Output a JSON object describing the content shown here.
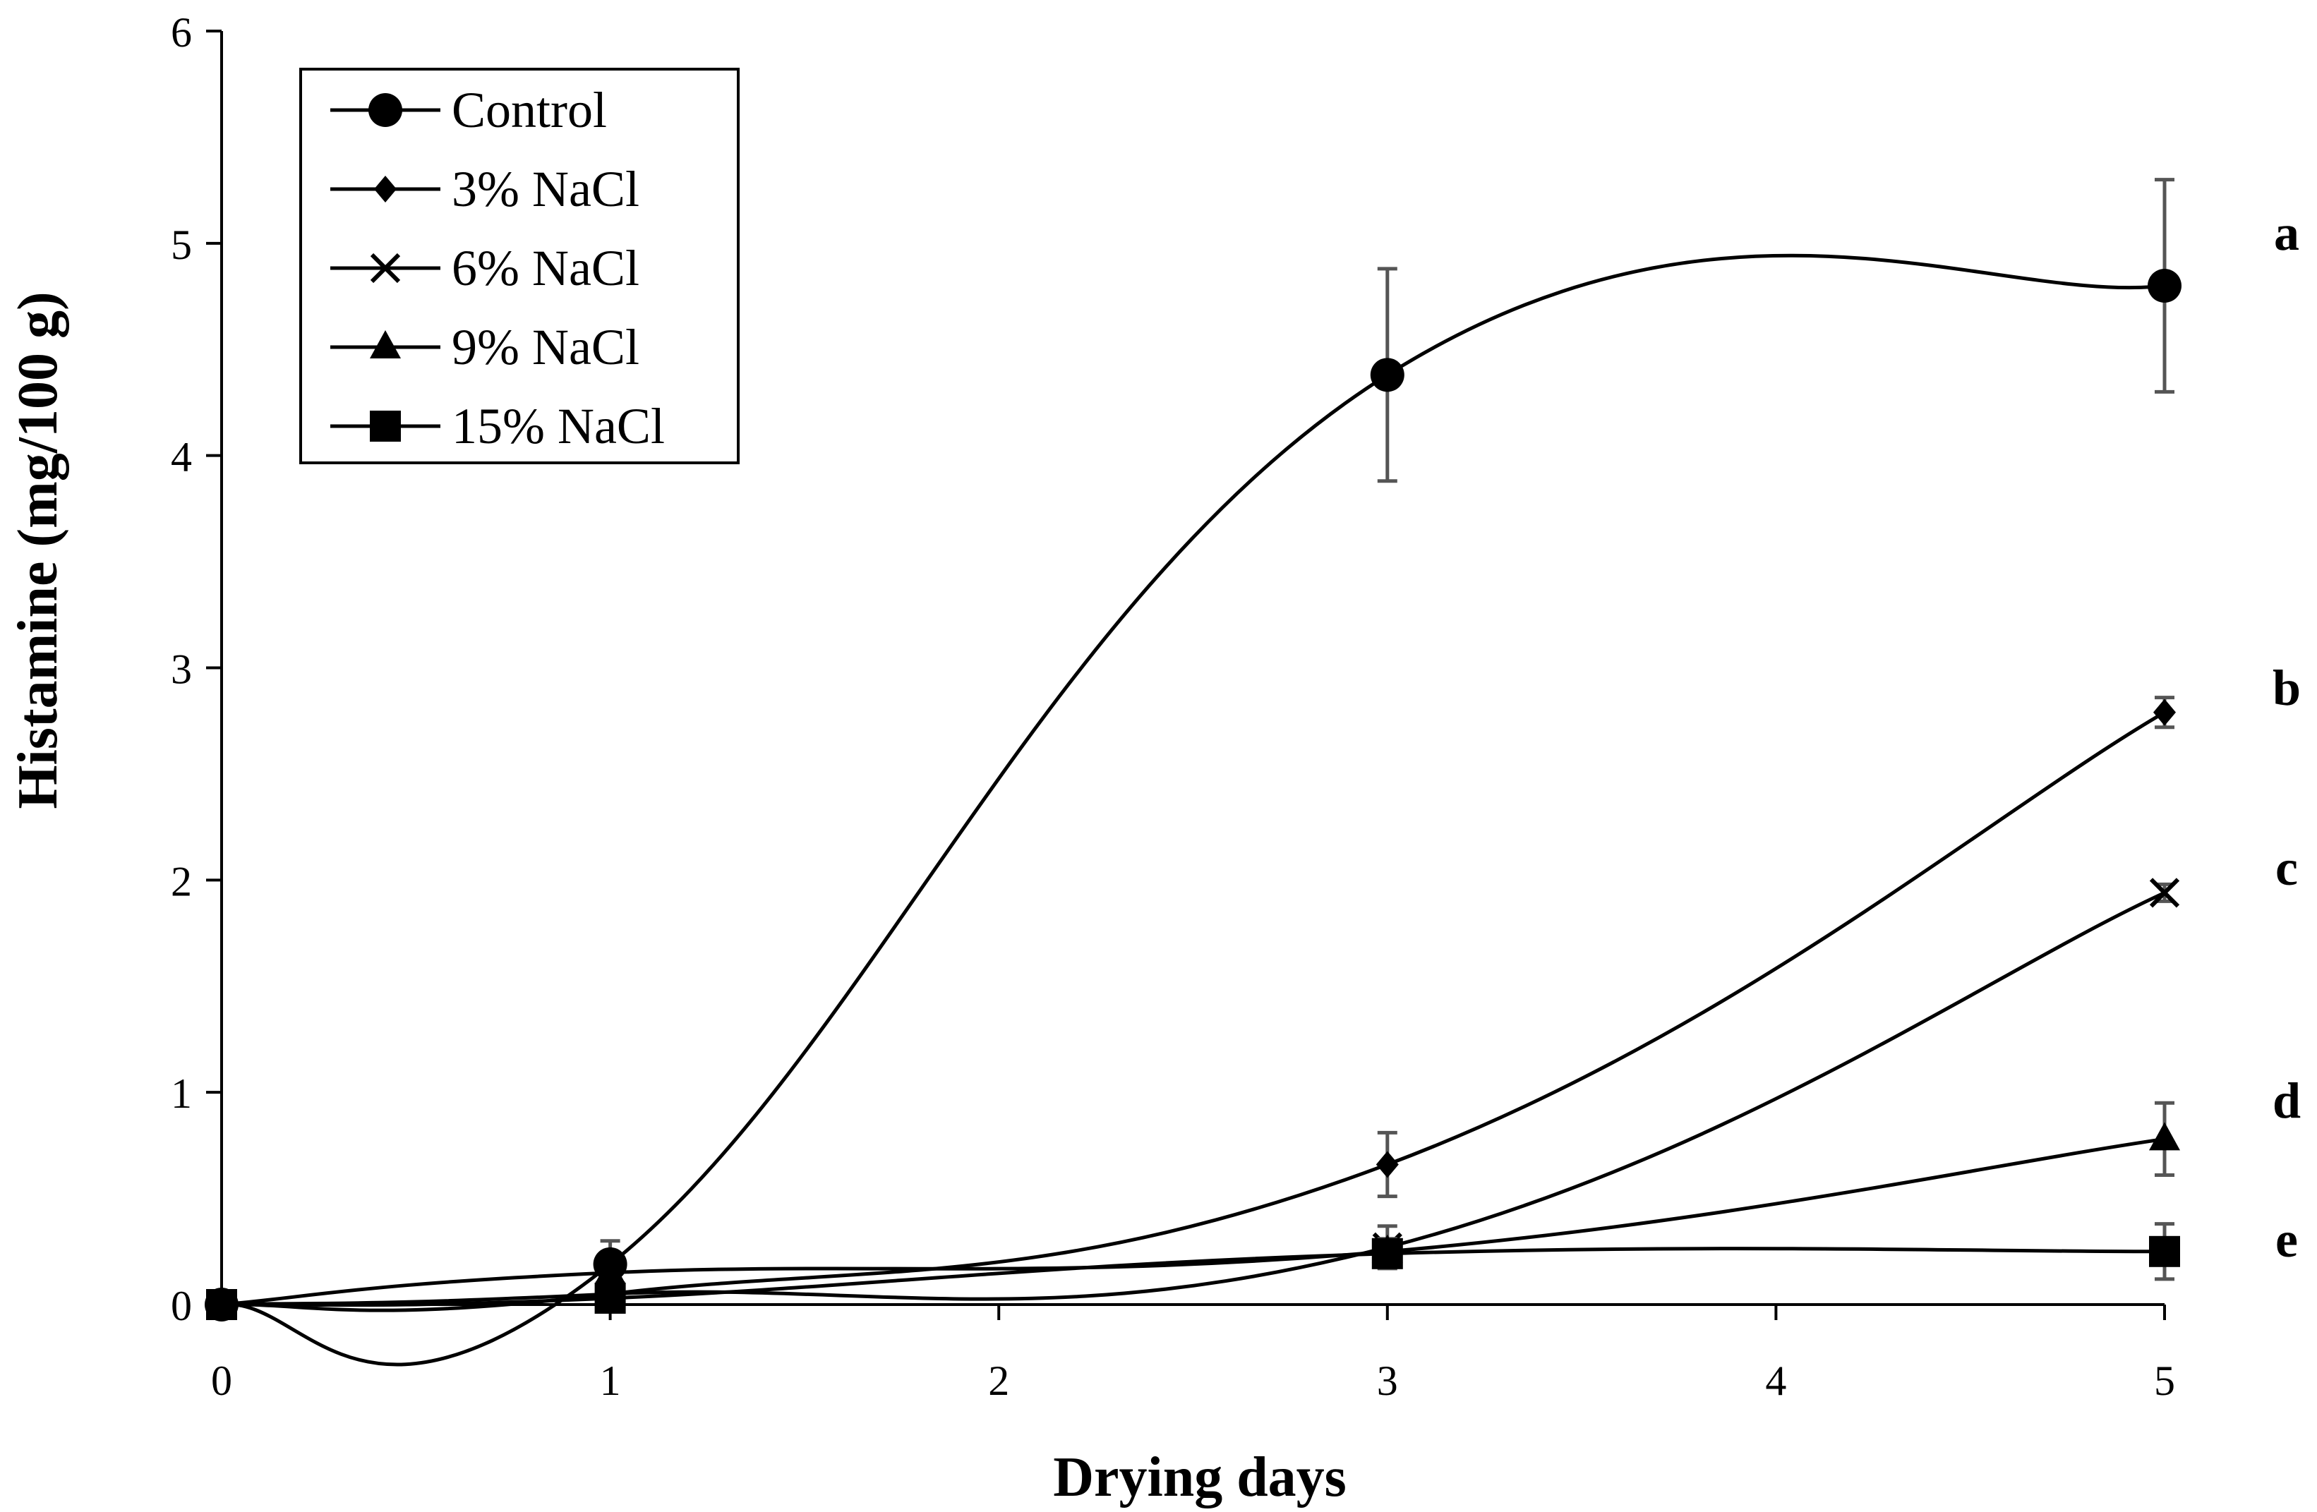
{
  "chart_data": {
    "type": "line",
    "title": "",
    "xlabel": "Drying days",
    "ylabel": "Histamine (mg/100 g)",
    "xlim": [
      0,
      5
    ],
    "ylim": [
      0,
      6
    ],
    "x_ticks": [
      "0",
      "1",
      "2",
      "3",
      "4",
      "5"
    ],
    "y_ticks": [
      "0",
      "1",
      "2",
      "3",
      "4",
      "5",
      "6"
    ],
    "grid": false,
    "legend_position": "top-left",
    "series": [
      {
        "name": "Control",
        "marker": "circle",
        "x": [
          0,
          1,
          3,
          5
        ],
        "y": [
          0,
          0.19,
          4.38,
          4.8
        ],
        "error": [
          0,
          0.11,
          0.5,
          0.5
        ],
        "significance": "a"
      },
      {
        "name": "3% NaCl",
        "marker": "diamond",
        "x": [
          0,
          1,
          3,
          5
        ],
        "y": [
          0,
          0.05,
          0.66,
          2.79
        ],
        "error": [
          0,
          0,
          0.15,
          0.07
        ],
        "significance": "b"
      },
      {
        "name": "6% NaCl",
        "marker": "cross",
        "x": [
          0,
          1,
          3,
          5
        ],
        "y": [
          0,
          0.05,
          0.27,
          1.94
        ],
        "error": [
          0,
          0,
          0.1,
          0.04
        ],
        "significance": "c"
      },
      {
        "name": "9% NaCl",
        "marker": "triangle",
        "x": [
          0,
          1,
          3,
          5
        ],
        "y": [
          0,
          0.15,
          0.25,
          0.78
        ],
        "error": [
          0,
          0,
          0.06,
          0.17
        ],
        "significance": "d"
      },
      {
        "name": "15% NaCl",
        "marker": "square",
        "x": [
          0,
          1,
          3,
          5
        ],
        "y": [
          0,
          0.03,
          0.24,
          0.25
        ],
        "error": [
          0,
          0,
          0.04,
          0.13
        ],
        "significance": "e"
      }
    ]
  }
}
